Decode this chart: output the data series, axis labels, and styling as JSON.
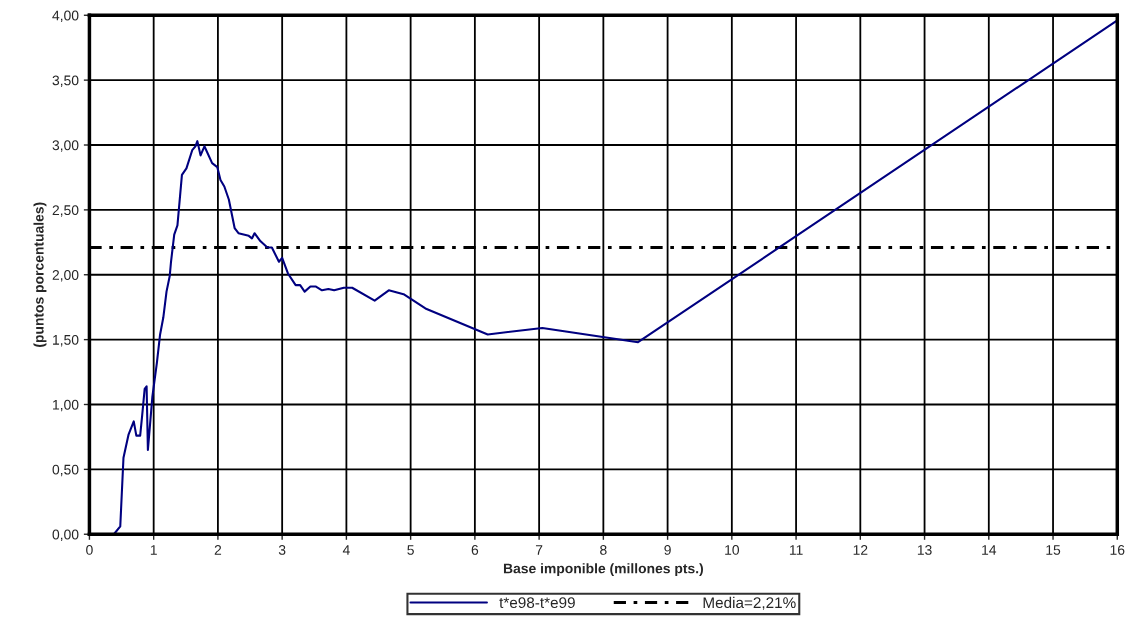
{
  "chart_data": {
    "type": "line",
    "xlabel": "Base imponible (millones pts.)",
    "ylabel": "(puntos porcentuales)",
    "xlim": [
      0,
      16
    ],
    "xticks": [
      0,
      1,
      2,
      3,
      4,
      5,
      6,
      7,
      8,
      9,
      10,
      11,
      12,
      13,
      14,
      15,
      16
    ],
    "ylim": [
      0,
      4
    ],
    "yticks": [
      {
        "value": 0,
        "label": "0,00"
      },
      {
        "value": 0.5,
        "label": "0,50"
      },
      {
        "value": 1,
        "label": "1,00"
      },
      {
        "value": 1.5,
        "label": "1,50"
      },
      {
        "value": 2,
        "label": "2,00"
      },
      {
        "value": 2.5,
        "label": "2,50"
      },
      {
        "value": 3,
        "label": "3,00"
      },
      {
        "value": 3.5,
        "label": "3,50"
      },
      {
        "value": 4,
        "label": "4,00"
      }
    ],
    "grid": true,
    "legend": "bottom",
    "line_style": "solid",
    "marker": "none",
    "series": [
      {
        "name": "t*e98-t*e99",
        "color": "#000080",
        "x": [
          0,
          0.38,
          0.48,
          0.53,
          0.61,
          0.69,
          0.73,
          0.79,
          0.82,
          0.86,
          0.89,
          0.91,
          0.98,
          1.05,
          1.1,
          1.15,
          1.2,
          1.25,
          1.27,
          1.32,
          1.37,
          1.44,
          1.51,
          1.6,
          1.65,
          1.68,
          1.73,
          1.79,
          1.91,
          1.99,
          2.04,
          2.1,
          2.17,
          2.26,
          2.32,
          2.4,
          2.48,
          2.53,
          2.57,
          2.66,
          2.77,
          2.84,
          2.95,
          3.0,
          3.09,
          3.21,
          3.28,
          3.35,
          3.44,
          3.52,
          3.62,
          3.72,
          3.81,
          3.96,
          4.09,
          4.44,
          4.66,
          4.89,
          5.23,
          6.2,
          7.05,
          8.54,
          16
        ],
        "values": [
          0,
          0,
          0.06,
          0.59,
          0.77,
          0.87,
          0.76,
          0.76,
          0.91,
          1.12,
          1.14,
          0.65,
          1.06,
          1.32,
          1.54,
          1.67,
          1.87,
          1.99,
          2.1,
          2.31,
          2.38,
          2.77,
          2.82,
          2.96,
          2.99,
          3.03,
          2.92,
          2.99,
          2.86,
          2.83,
          2.73,
          2.68,
          2.58,
          2.36,
          2.32,
          2.31,
          2.3,
          2.28,
          2.32,
          2.26,
          2.21,
          2.21,
          2.1,
          2.13,
          2.01,
          1.92,
          1.92,
          1.87,
          1.91,
          1.91,
          1.88,
          1.89,
          1.88,
          1.9,
          1.9,
          1.8,
          1.88,
          1.85,
          1.74,
          1.54,
          1.59,
          1.48,
          3.96
        ]
      }
    ],
    "ref_lines": [
      {
        "axis": "y",
        "value": 2.21,
        "label": "Media=2,21%",
        "color": "#000000",
        "line_style": "dashed"
      }
    ]
  }
}
